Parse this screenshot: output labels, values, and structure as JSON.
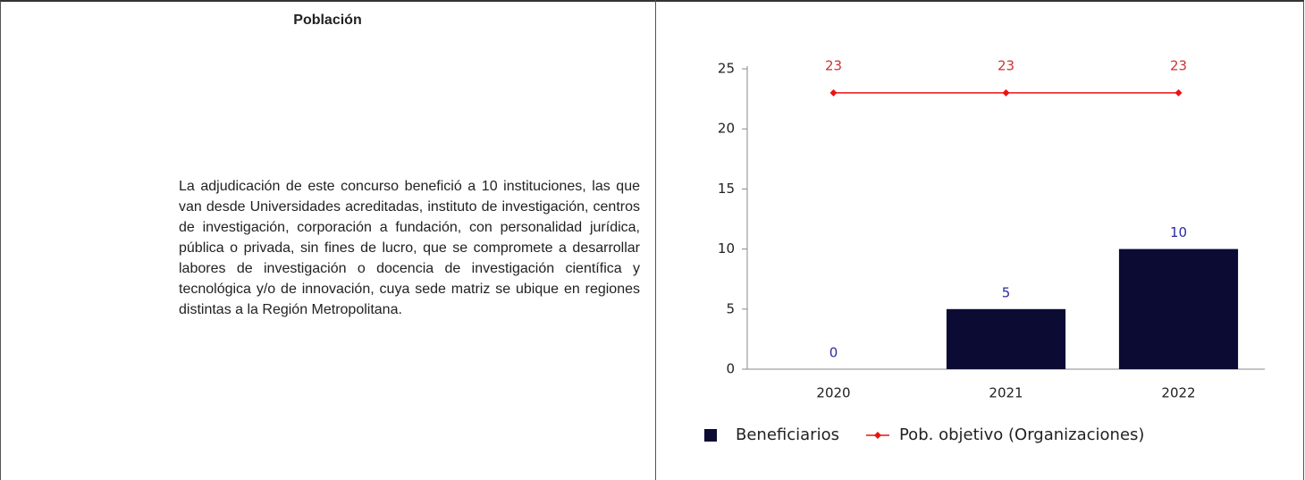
{
  "table": {
    "header": "Población",
    "text": "La adjudicación de este concurso benefició a 10 instituciones, las que van desde Universidades acreditadas, instituto de investigación, centros de investigación, corporación a fundación, con personalidad jurídica, pública o privada, sin fines de lucro, que se compromete a desarrollar labores de investigación o docencia de investigación científica y tecnológica y/o de innovación, cuya sede matriz se ubique en regiones distintas a la Región Metropolitana."
  },
  "chart_data": {
    "type": "bar",
    "categories": [
      "2020",
      "2021",
      "2022"
    ],
    "series": [
      {
        "name": "Beneficiarios",
        "type": "bar",
        "color": "#0b0b33",
        "label_color": "#2a2aa0",
        "values": [
          0,
          5,
          10
        ]
      },
      {
        "name": "Pob. objetivo (Organizaciones)",
        "type": "line",
        "color": "#ee1111",
        "label_color": "#cc3333",
        "values": [
          23,
          23,
          23
        ]
      }
    ],
    "ylim": [
      0,
      25
    ],
    "yticks": [
      0,
      5,
      10,
      15,
      20,
      25
    ],
    "legend": "bottom"
  }
}
